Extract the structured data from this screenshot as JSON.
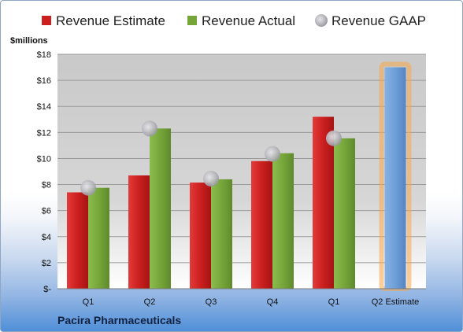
{
  "chart_data": {
    "type": "bar",
    "ylabel": "$millions",
    "ylim": [
      0,
      18
    ],
    "yticks": [
      0,
      2,
      4,
      6,
      8,
      10,
      12,
      14,
      16,
      18
    ],
    "ytick_labels": [
      "$-",
      "$2",
      "$4",
      "$6",
      "$8",
      "$10",
      "$12",
      "$14",
      "$16",
      "$18"
    ],
    "categories": [
      "Q1",
      "Q2",
      "Q3",
      "Q4",
      "Q1",
      "Q2 Estimate"
    ],
    "legend_placement": "top",
    "series": [
      {
        "name": "Revenue Estimate",
        "kind": "bar",
        "color": "#cc1f1f",
        "values": [
          7.4,
          8.7,
          8.15,
          9.8,
          13.2,
          null
        ]
      },
      {
        "name": "Revenue Actual",
        "kind": "bar",
        "color": "#76a63a",
        "values": [
          7.75,
          12.3,
          8.4,
          10.4,
          11.55,
          null
        ]
      },
      {
        "name": "Revenue GAAP",
        "kind": "marker",
        "color": "#b8b8bd",
        "values": [
          7.75,
          12.3,
          8.45,
          10.35,
          11.55,
          null
        ]
      },
      {
        "name": "",
        "kind": "highlighted-estimate",
        "color": "#6f9fd8",
        "values": [
          null,
          null,
          null,
          null,
          null,
          17.0
        ]
      }
    ]
  },
  "footer": {
    "company": "Pacira Pharmaceuticals"
  }
}
